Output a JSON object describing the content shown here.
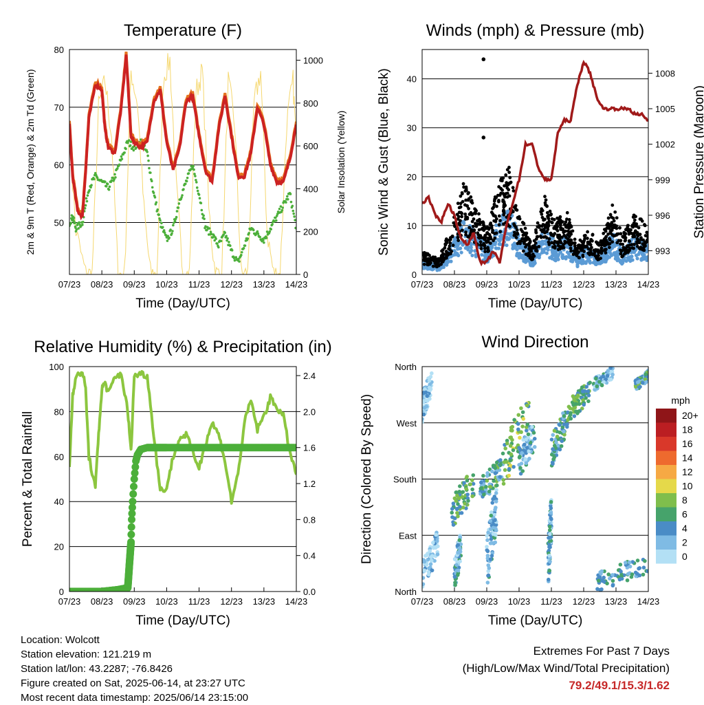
{
  "palette": {
    "t2": "#e5731f",
    "t9": "#cc2222",
    "td": "#4caf3a",
    "solar": "#f5d76e",
    "wind": "#5b9bd5",
    "gust": "#000000",
    "pressure": "#a01a1a",
    "rh": "#8cc63f",
    "rain": "#4caf3a"
  },
  "speed_colors": [
    [
      "0",
      "#b3e0f5"
    ],
    [
      "2",
      "#7fbbe4"
    ],
    [
      "4",
      "#4a8cc6"
    ],
    [
      "6",
      "#46a36b"
    ],
    [
      "8",
      "#7fbe4c"
    ],
    [
      "10",
      "#e5d94a"
    ],
    [
      "12",
      "#f6a944"
    ],
    [
      "14",
      "#ee6a2e"
    ],
    [
      "16",
      "#d9382a"
    ],
    [
      "18",
      "#bb1e22"
    ],
    [
      "20+",
      "#8f1518"
    ]
  ],
  "chart_data": [
    {
      "type": "line",
      "title": "Temperature (F)",
      "xlabel": "Time (Day/UTC)",
      "ylabel": "2m & 9m T (Red, Orange) & 2m Td (Green)",
      "y2label": "Solar Insolation (Yellow)",
      "x_ticks": [
        "07/23",
        "08/23",
        "09/23",
        "10/23",
        "11/23",
        "12/23",
        "13/23",
        "14/23"
      ],
      "ylim": [
        41,
        80
      ],
      "yticks": [
        "50",
        "60",
        "70",
        "80"
      ],
      "y2lim": [
        0,
        1050
      ],
      "y2ticks": [
        "0",
        "200",
        "400",
        "600",
        "800",
        "1000"
      ],
      "series": [
        {
          "key": "t9",
          "x": [
            0,
            0.1,
            0.25,
            0.4,
            0.5,
            0.6,
            0.8,
            1.0,
            1.1,
            1.2,
            1.4,
            1.6,
            1.75,
            1.9,
            2.0,
            2.2,
            2.4,
            2.6,
            2.8,
            3.0,
            3.2,
            3.4,
            3.6,
            3.8,
            4.0,
            4.2,
            4.4,
            4.6,
            4.8,
            5.0,
            5.2,
            5.4,
            5.6,
            5.8,
            6.0,
            6.2,
            6.4,
            6.6,
            6.8,
            7.0
          ],
          "y": [
            67,
            58,
            52,
            51,
            59,
            68,
            74,
            73,
            66,
            63,
            62,
            70,
            79,
            65,
            64,
            63,
            64,
            71,
            73,
            64,
            59,
            63,
            71,
            72,
            65,
            59,
            57,
            66,
            72,
            65,
            58,
            58,
            62,
            70,
            67,
            60,
            57,
            57,
            61,
            67
          ]
        },
        {
          "key": "td",
          "x": [
            0,
            0.1,
            0.2,
            0.4,
            0.6,
            0.8,
            1.0,
            1.2,
            1.4,
            1.6,
            1.8,
            2.0,
            2.2,
            2.4,
            2.6,
            2.8,
            3.0,
            3.2,
            3.4,
            3.6,
            3.8,
            4.0,
            4.2,
            4.4,
            4.6,
            4.8,
            5.0,
            5.2,
            5.4,
            5.6,
            5.8,
            6.0,
            6.2,
            6.4,
            6.6,
            6.8,
            7.0
          ],
          "y": [
            50,
            51,
            49,
            50,
            56,
            58,
            57,
            56,
            58,
            61,
            64,
            63,
            64,
            62,
            55,
            50,
            47,
            49,
            54,
            57,
            60,
            55,
            49,
            48,
            46,
            48,
            45,
            43,
            46,
            49,
            48,
            47,
            49,
            51,
            53,
            55,
            49
          ]
        },
        {
          "key": "solar",
          "x": [
            0,
            0.2,
            0.5,
            0.7,
            0.9,
            1.1,
            1.3,
            1.5,
            1.7,
            1.9,
            2.1,
            2.3,
            2.5,
            2.7,
            2.9,
            3.1,
            3.3,
            3.5,
            3.7,
            3.9,
            4.1,
            4.3,
            4.5,
            4.7,
            4.9,
            5.1,
            5.3,
            5.5,
            5.7,
            5.9,
            6.1,
            6.3,
            6.5,
            6.7,
            6.9,
            7.0
          ],
          "y": [
            650,
            200,
            0,
            0,
            780,
            900,
            650,
            0,
            0,
            950,
            800,
            300,
            0,
            0,
            920,
            1000,
            400,
            0,
            0,
            850,
            950,
            300,
            0,
            0,
            900,
            700,
            0,
            0,
            800,
            950,
            200,
            0,
            0,
            700,
            900,
            600
          ]
        }
      ]
    },
    {
      "type": "scatter+line",
      "title": "Winds (mph) & Pressure (mb)",
      "xlabel": "Time (Day/UTC)",
      "ylabel": "Sonic Wind & Gust (Blue, Black)",
      "y2label": "Station Pressure (Maroon)",
      "x_ticks": [
        "07/23",
        "08/23",
        "09/23",
        "10/23",
        "11/23",
        "12/23",
        "13/23",
        "14/23"
      ],
      "ylim": [
        0,
        46
      ],
      "yticks": [
        "0",
        "10",
        "20",
        "30",
        "40"
      ],
      "y2lim": [
        991,
        1010
      ],
      "y2ticks": [
        "993",
        "996",
        "999",
        "1002",
        "1005",
        "1008"
      ],
      "series": [
        {
          "key": "pressure",
          "x": [
            0,
            0.2,
            0.4,
            0.6,
            0.8,
            1.0,
            1.2,
            1.4,
            1.6,
            1.8,
            2.0,
            2.2,
            2.4,
            2.6,
            2.8,
            3.0,
            3.2,
            3.4,
            3.6,
            3.8,
            4.0,
            4.2,
            4.4,
            4.6,
            4.8,
            5.0,
            5.2,
            5.4,
            5.6,
            5.8,
            6.0,
            6.2,
            6.4,
            6.6,
            6.8,
            7.0
          ],
          "y": [
            997,
            997.5,
            996,
            995.5,
            997,
            996,
            994,
            993.5,
            994.5,
            992,
            992,
            993,
            992,
            995,
            997,
            999,
            1002,
            1002,
            1000,
            999,
            999,
            1003,
            1004,
            1004,
            1007,
            1009,
            1008,
            1006,
            1005,
            1005,
            1005,
            1005,
            1005,
            1004.5,
            1004.5,
            1004
          ]
        },
        {
          "key": "gust_extremes",
          "x": [
            1.9,
            1.9
          ],
          "y": [
            44,
            28
          ]
        }
      ]
    },
    {
      "type": "line+scatter",
      "title": "Relative Humidity (%) & Precipitation (in)",
      "xlabel": "Time (Day/UTC)",
      "ylabel": "Percent & Total Rainfall",
      "x_ticks": [
        "07/23",
        "08/23",
        "09/23",
        "10/23",
        "11/23",
        "12/23",
        "13/23",
        "14/23"
      ],
      "ylim": [
        0,
        100
      ],
      "yticks": [
        "0",
        "20",
        "40",
        "60",
        "80",
        "100"
      ],
      "y2lim": [
        0,
        2.5
      ],
      "y2ticks": [
        "0.0",
        "0.4",
        "0.8",
        "1.2",
        "1.6",
        "2.0",
        "2.4"
      ],
      "series": [
        {
          "key": "rh",
          "x": [
            0,
            0.1,
            0.2,
            0.4,
            0.5,
            0.6,
            0.8,
            0.9,
            1.0,
            1.1,
            1.2,
            1.4,
            1.6,
            1.8,
            1.9,
            2.0,
            2.2,
            2.4,
            2.6,
            2.8,
            3.0,
            3.2,
            3.4,
            3.6,
            3.8,
            4.0,
            4.2,
            4.4,
            4.6,
            4.8,
            5.0,
            5.2,
            5.4,
            5.6,
            5.8,
            6.0,
            6.2,
            6.4,
            6.6,
            6.8,
            7.0
          ],
          "y": [
            55,
            88,
            95,
            98,
            90,
            60,
            46,
            70,
            90,
            93,
            88,
            95,
            97,
            80,
            62,
            96,
            97,
            96,
            70,
            45,
            46,
            60,
            68,
            70,
            62,
            55,
            66,
            75,
            70,
            58,
            40,
            52,
            75,
            85,
            72,
            78,
            86,
            82,
            78,
            62,
            52
          ]
        },
        {
          "key": "rain",
          "x": [
            0,
            0.5,
            1.0,
            1.5,
            1.8,
            1.85,
            1.9,
            1.92,
            1.95,
            2.0,
            2.05,
            2.1,
            2.2,
            2.4,
            3,
            4,
            5,
            6,
            7
          ],
          "y": [
            0,
            0,
            0,
            0.02,
            0.04,
            0.3,
            0.55,
            0.8,
            1.0,
            1.25,
            1.45,
            1.52,
            1.58,
            1.6,
            1.6,
            1.6,
            1.6,
            1.6,
            1.6
          ]
        }
      ]
    },
    {
      "type": "scatter",
      "title": "Wind Direction",
      "xlabel": "Time (Day/UTC)",
      "ylabel": "Direction (Colored By Speed)",
      "x_ticks": [
        "07/23",
        "08/23",
        "09/23",
        "10/23",
        "11/23",
        "12/23",
        "13/23",
        "14/23"
      ],
      "yticks": [
        "North",
        "East",
        "South",
        "West",
        "North"
      ],
      "ylim": [
        0,
        360
      ],
      "colorbar_title": "mph",
      "clusters": [
        {
          "x": [
            0,
            0.3
          ],
          "y": [
            270,
            360
          ],
          "s": 1
        },
        {
          "x": [
            0,
            0.5
          ],
          "y": [
            0,
            100
          ],
          "s": 1
        },
        {
          "x": [
            0.9,
            1.6
          ],
          "y": [
            100,
            200
          ],
          "s": 6
        },
        {
          "x": [
            1.8,
            2.5
          ],
          "y": [
            140,
            220
          ],
          "s": 5
        },
        {
          "x": [
            2.5,
            3.3
          ],
          "y": [
            160,
            320
          ],
          "s": 7
        },
        {
          "x": [
            3.0,
            3.5
          ],
          "y": [
            180,
            280
          ],
          "s": 3
        },
        {
          "x": [
            4.0,
            4.5
          ],
          "y": [
            200,
            300
          ],
          "s": 5
        },
        {
          "x": [
            4.5,
            5.2
          ],
          "y": [
            270,
            340
          ],
          "s": 6
        },
        {
          "x": [
            5.3,
            5.9
          ],
          "y": [
            320,
            360
          ],
          "s": 3
        },
        {
          "x": [
            6.6,
            7.0
          ],
          "y": [
            320,
            355
          ],
          "s": 5
        },
        {
          "x": [
            5.4,
            7.0
          ],
          "y": [
            0,
            60
          ],
          "s": 4
        },
        {
          "x": [
            2.0,
            2.3
          ],
          "y": [
            0,
            180
          ],
          "s": 3
        },
        {
          "x": [
            3.9,
            4.0
          ],
          "y": [
            0,
            160
          ],
          "s": 3
        },
        {
          "x": [
            1.0,
            1.2
          ],
          "y": [
            0,
            100
          ],
          "s": 3
        }
      ]
    }
  ],
  "info": {
    "location": "Location: Wolcott",
    "elevation": "Station elevation: 121.219 m",
    "latlon": "Station lat/lon: 43.2287; -76.8426",
    "created": "Figure created on Sat, 2025-06-14, at 23:27 UTC",
    "recent": "Most recent data timestamp: 2025/06/14 23:15:00"
  },
  "extremes": {
    "line1": "Extremes For Past 7 Days",
    "line2": "(High/Low/Max Wind/Total Precipitation)",
    "values": "79.2/49.1/15.3/1.62"
  }
}
